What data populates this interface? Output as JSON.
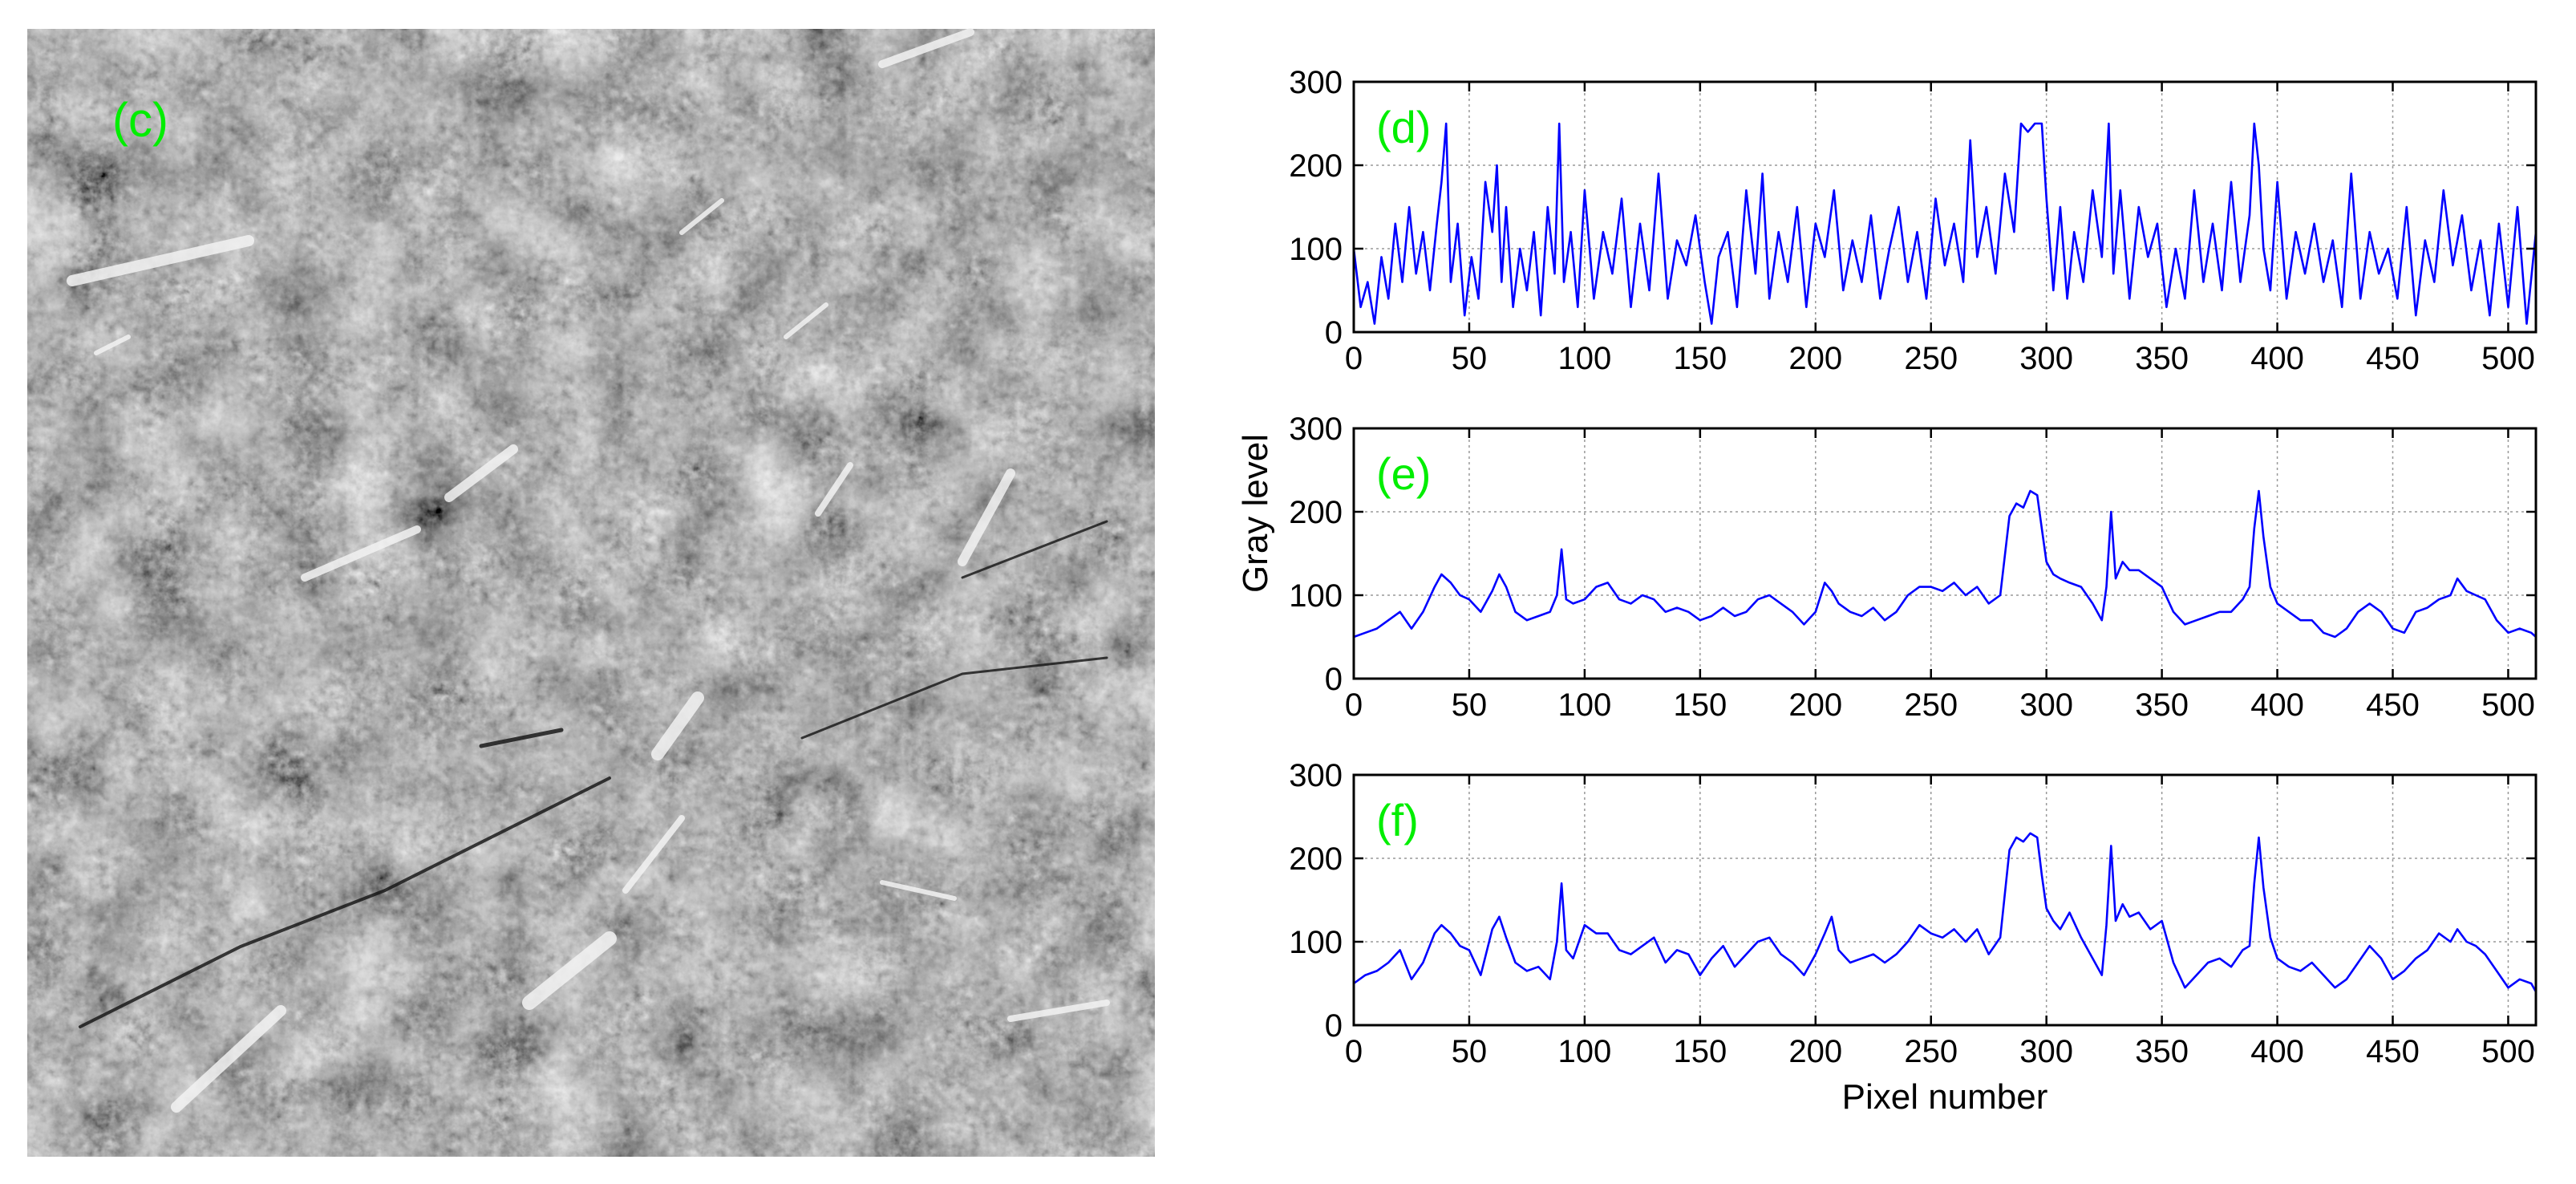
{
  "colors": {
    "label": "#00ee00",
    "line": "#0000ff",
    "grid": "#999999",
    "axis": "#000000",
    "background": "#ffffff"
  },
  "image_panel": {
    "label": "(c)",
    "description_icon": "grayscale-texture-image"
  },
  "common": {
    "xlabel": "Pixel number",
    "ylabel": "Gray level",
    "xlim": [
      0,
      512
    ],
    "ylim": [
      0,
      300
    ],
    "xticks": [
      0,
      50,
      100,
      150,
      200,
      250,
      300,
      350,
      400,
      450,
      500
    ],
    "yticks": [
      0,
      100,
      200,
      300
    ]
  },
  "chart_data": [
    {
      "type": "line",
      "label": "(d)",
      "title": "",
      "xlabel": "",
      "ylabel": "",
      "xlim": [
        0,
        512
      ],
      "ylim": [
        0,
        300
      ],
      "grid": true,
      "x": [
        0,
        3,
        6,
        9,
        12,
        15,
        18,
        21,
        24,
        27,
        30,
        33,
        36,
        38,
        40,
        42,
        45,
        48,
        51,
        54,
        57,
        60,
        62,
        64,
        66,
        69,
        72,
        75,
        78,
        81,
        84,
        87,
        89,
        91,
        94,
        97,
        100,
        104,
        108,
        112,
        116,
        120,
        124,
        128,
        132,
        136,
        140,
        144,
        148,
        152,
        155,
        158,
        162,
        166,
        170,
        174,
        177,
        180,
        184,
        188,
        192,
        196,
        200,
        204,
        208,
        212,
        216,
        220,
        224,
        228,
        232,
        236,
        240,
        244,
        248,
        252,
        256,
        260,
        264,
        267,
        270,
        274,
        278,
        282,
        286,
        289,
        292,
        295,
        298,
        300,
        303,
        306,
        309,
        312,
        316,
        320,
        324,
        327,
        329,
        332,
        336,
        340,
        344,
        348,
        352,
        356,
        360,
        364,
        368,
        372,
        376,
        380,
        384,
        388,
        390,
        392,
        394,
        397,
        400,
        404,
        408,
        412,
        416,
        420,
        424,
        428,
        432,
        436,
        440,
        444,
        448,
        452,
        456,
        460,
        464,
        468,
        472,
        476,
        480,
        484,
        488,
        492,
        496,
        500,
        504,
        508,
        512
      ],
      "series": [
        {
          "name": "Gray level (d)",
          "values": [
            100,
            30,
            60,
            10,
            90,
            40,
            130,
            60,
            150,
            70,
            120,
            50,
            130,
            180,
            250,
            60,
            130,
            20,
            90,
            40,
            180,
            120,
            200,
            60,
            150,
            30,
            100,
            50,
            120,
            20,
            150,
            70,
            250,
            60,
            120,
            30,
            170,
            40,
            120,
            70,
            160,
            30,
            130,
            50,
            190,
            40,
            110,
            80,
            140,
            60,
            10,
            90,
            120,
            30,
            170,
            70,
            190,
            40,
            120,
            60,
            150,
            30,
            130,
            90,
            170,
            50,
            110,
            60,
            140,
            40,
            100,
            150,
            60,
            120,
            40,
            160,
            80,
            130,
            60,
            230,
            90,
            150,
            70,
            190,
            120,
            250,
            240,
            250,
            250,
            160,
            50,
            150,
            40,
            120,
            60,
            170,
            90,
            250,
            70,
            170,
            40,
            150,
            90,
            130,
            30,
            100,
            40,
            170,
            60,
            130,
            50,
            180,
            60,
            140,
            250,
            200,
            100,
            50,
            180,
            40,
            120,
            70,
            130,
            60,
            110,
            30,
            190,
            40,
            120,
            70,
            100,
            40,
            150,
            20,
            110,
            60,
            170,
            80,
            140,
            50,
            110,
            20,
            130,
            30,
            150,
            10,
            120
          ]
        }
      ]
    },
    {
      "type": "line",
      "label": "(e)",
      "title": "",
      "xlabel": "",
      "ylabel": "Gray level",
      "xlim": [
        0,
        512
      ],
      "ylim": [
        0,
        300
      ],
      "grid": true,
      "x": [
        0,
        5,
        10,
        15,
        20,
        25,
        30,
        35,
        38,
        42,
        46,
        50,
        55,
        60,
        63,
        66,
        70,
        75,
        80,
        85,
        88,
        90,
        92,
        95,
        100,
        105,
        110,
        115,
        120,
        125,
        130,
        135,
        140,
        145,
        150,
        155,
        160,
        165,
        170,
        175,
        180,
        185,
        190,
        195,
        200,
        204,
        207,
        210,
        215,
        220,
        225,
        230,
        235,
        240,
        245,
        250,
        255,
        260,
        265,
        270,
        275,
        280,
        284,
        287,
        290,
        293,
        296,
        298,
        300,
        303,
        306,
        310,
        315,
        320,
        324,
        326,
        328,
        330,
        333,
        336,
        340,
        345,
        350,
        355,
        360,
        365,
        370,
        375,
        380,
        385,
        388,
        390,
        392,
        394,
        397,
        400,
        405,
        410,
        415,
        420,
        425,
        430,
        435,
        440,
        445,
        450,
        455,
        460,
        465,
        470,
        475,
        478,
        482,
        486,
        490,
        495,
        500,
        505,
        510,
        512
      ],
      "series": [
        {
          "name": "Gray level (e)",
          "values": [
            50,
            55,
            60,
            70,
            80,
            60,
            80,
            110,
            125,
            115,
            100,
            95,
            80,
            105,
            125,
            110,
            80,
            70,
            75,
            80,
            100,
            155,
            95,
            90,
            95,
            110,
            115,
            95,
            90,
            100,
            95,
            80,
            85,
            80,
            70,
            75,
            85,
            75,
            80,
            95,
            100,
            90,
            80,
            65,
            80,
            115,
            105,
            90,
            80,
            75,
            85,
            70,
            80,
            100,
            110,
            110,
            105,
            115,
            100,
            110,
            90,
            100,
            195,
            210,
            205,
            225,
            220,
            180,
            140,
            125,
            120,
            115,
            110,
            90,
            70,
            110,
            200,
            120,
            140,
            130,
            130,
            120,
            110,
            80,
            65,
            70,
            75,
            80,
            80,
            95,
            110,
            180,
            225,
            170,
            110,
            90,
            80,
            70,
            70,
            55,
            50,
            60,
            80,
            90,
            80,
            60,
            55,
            80,
            85,
            95,
            100,
            120,
            105,
            100,
            95,
            70,
            55,
            60,
            55,
            50
          ]
        }
      ]
    },
    {
      "type": "line",
      "label": "(f)",
      "title": "",
      "xlabel": "Pixel number",
      "ylabel": "",
      "xlim": [
        0,
        512
      ],
      "ylim": [
        0,
        300
      ],
      "grid": true,
      "x": [
        0,
        5,
        10,
        15,
        20,
        25,
        30,
        35,
        38,
        42,
        46,
        50,
        55,
        60,
        63,
        66,
        70,
        75,
        80,
        85,
        88,
        90,
        92,
        95,
        100,
        105,
        110,
        115,
        120,
        125,
        130,
        135,
        140,
        145,
        150,
        155,
        160,
        165,
        170,
        175,
        180,
        185,
        190,
        195,
        200,
        204,
        207,
        210,
        215,
        220,
        225,
        230,
        235,
        240,
        245,
        250,
        255,
        260,
        265,
        270,
        275,
        280,
        284,
        287,
        290,
        293,
        296,
        298,
        300,
        303,
        306,
        310,
        315,
        320,
        324,
        326,
        328,
        330,
        333,
        336,
        340,
        345,
        350,
        355,
        360,
        365,
        370,
        375,
        380,
        385,
        388,
        390,
        392,
        394,
        397,
        400,
        405,
        410,
        415,
        420,
        425,
        430,
        435,
        440,
        445,
        450,
        455,
        460,
        465,
        470,
        475,
        478,
        482,
        486,
        490,
        495,
        500,
        505,
        510,
        512
      ],
      "series": [
        {
          "name": "Gray level (f)",
          "values": [
            50,
            60,
            65,
            75,
            90,
            55,
            75,
            110,
            120,
            110,
            95,
            90,
            60,
            115,
            130,
            105,
            75,
            65,
            70,
            55,
            100,
            170,
            90,
            80,
            120,
            110,
            110,
            90,
            85,
            95,
            105,
            75,
            90,
            85,
            60,
            80,
            95,
            70,
            85,
            100,
            105,
            85,
            75,
            60,
            85,
            110,
            130,
            90,
            75,
            80,
            85,
            75,
            85,
            100,
            120,
            110,
            105,
            115,
            100,
            115,
            85,
            105,
            210,
            225,
            220,
            230,
            225,
            180,
            140,
            125,
            115,
            135,
            105,
            80,
            60,
            120,
            215,
            125,
            145,
            130,
            135,
            115,
            125,
            75,
            45,
            60,
            75,
            80,
            70,
            90,
            95,
            170,
            225,
            165,
            105,
            80,
            70,
            65,
            75,
            60,
            45,
            55,
            75,
            95,
            80,
            55,
            65,
            80,
            90,
            110,
            100,
            115,
            100,
            95,
            85,
            65,
            45,
            55,
            50,
            40
          ]
        }
      ]
    }
  ]
}
